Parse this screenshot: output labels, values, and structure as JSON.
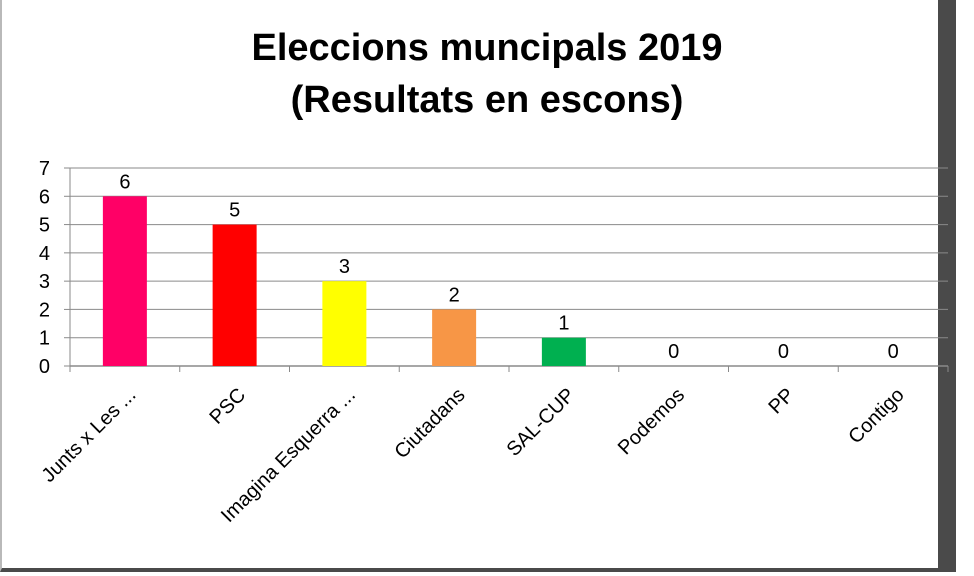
{
  "chart_data": {
    "type": "bar",
    "title_lines": [
      "Eleccions muncipals 2019",
      "(Resultats en escons)"
    ],
    "categories": [
      "Junts x Les ...",
      "PSC",
      "Imagina Esquerra ...",
      "Ciutadans",
      "SAL-CUP",
      "Podemos",
      "PP",
      "Contigo"
    ],
    "values": [
      6,
      5,
      3,
      2,
      1,
      0,
      0,
      0
    ],
    "colors": [
      "#ff0066",
      "#ff0000",
      "#ffff00",
      "#f79646",
      "#00b050",
      "#000000",
      "#000000",
      "#000000"
    ],
    "data_labels": [
      "6",
      "5",
      "3",
      "2",
      "1",
      "0",
      "0",
      "0"
    ],
    "y_ticks": [
      "0",
      "1",
      "2",
      "3",
      "4",
      "5",
      "6",
      "7"
    ],
    "ylim": [
      0,
      7
    ],
    "grid": true,
    "legend": "none"
  }
}
